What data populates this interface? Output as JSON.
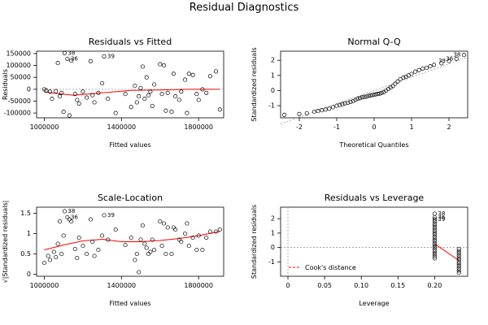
{
  "title": "Residual Diagnostics",
  "chart_data": [
    {
      "type": "scatter",
      "title": "Residuals vs Fitted",
      "xlabel": "Fitted values",
      "ylabel": "Residuals",
      "xlim": [
        960000,
        1930000
      ],
      "ylim": [
        -120000,
        160000
      ],
      "xticks": [
        1000000,
        1400000,
        1800000
      ],
      "yticks": [
        -100000,
        -50000,
        0,
        50000,
        100000,
        150000
      ],
      "reference_line": 0,
      "points": [
        [
          1000000,
          0
        ],
        [
          1010000,
          -5000
        ],
        [
          1030000,
          -10000
        ],
        [
          1040000,
          -40000
        ],
        [
          1060000,
          -8000
        ],
        [
          1070000,
          110000
        ],
        [
          1080000,
          -30000
        ],
        [
          1090000,
          -15000
        ],
        [
          1100000,
          -95000
        ],
        [
          1105000,
          152000
        ],
        [
          1120000,
          128000
        ],
        [
          1130000,
          -110000
        ],
        [
          1140000,
          120000
        ],
        [
          1160000,
          -20000
        ],
        [
          1170000,
          -45000
        ],
        [
          1180000,
          -60000
        ],
        [
          1200000,
          -10000
        ],
        [
          1220000,
          -35000
        ],
        [
          1240000,
          118000
        ],
        [
          1250000,
          -25000
        ],
        [
          1260000,
          -55000
        ],
        [
          1280000,
          -15000
        ],
        [
          1300000,
          25000
        ],
        [
          1310000,
          138000
        ],
        [
          1330000,
          -40000
        ],
        [
          1370000,
          -100000
        ],
        [
          1420000,
          -20000
        ],
        [
          1450000,
          -75000
        ],
        [
          1470000,
          15000
        ],
        [
          1480000,
          -55000
        ],
        [
          1490000,
          -30000
        ],
        [
          1500000,
          5000
        ],
        [
          1510000,
          95000
        ],
        [
          1520000,
          -40000
        ],
        [
          1530000,
          50000
        ],
        [
          1540000,
          -25000
        ],
        [
          1550000,
          -10000
        ],
        [
          1560000,
          -70000
        ],
        [
          1570000,
          20000
        ],
        [
          1600000,
          105000
        ],
        [
          1610000,
          -20000
        ],
        [
          1620000,
          100000
        ],
        [
          1630000,
          -90000
        ],
        [
          1640000,
          -15000
        ],
        [
          1660000,
          -95000
        ],
        [
          1670000,
          65000
        ],
        [
          1680000,
          -30000
        ],
        [
          1700000,
          -45000
        ],
        [
          1710000,
          -10000
        ],
        [
          1730000,
          40000
        ],
        [
          1740000,
          -100000
        ],
        [
          1750000,
          65000
        ],
        [
          1770000,
          60000
        ],
        [
          1790000,
          -20000
        ],
        [
          1800000,
          -45000
        ],
        [
          1820000,
          0
        ],
        [
          1840000,
          -15000
        ],
        [
          1860000,
          55000
        ],
        [
          1890000,
          75000
        ],
        [
          1910000,
          -85000
        ]
      ],
      "labels": [
        {
          "text": "38",
          "x": 1105000,
          "y": 152000
        },
        {
          "text": "36",
          "x": 1120000,
          "y": 128000
        },
        {
          "text": "39",
          "x": 1310000,
          "y": 138000
        }
      ],
      "smooth": [
        [
          1000000,
          -12000
        ],
        [
          1150000,
          -25000
        ],
        [
          1300000,
          -15000
        ],
        [
          1450000,
          -5000
        ],
        [
          1600000,
          -3000
        ],
        [
          1750000,
          0
        ],
        [
          1910000,
          0
        ]
      ]
    },
    {
      "type": "scatter",
      "title": "Normal Q-Q",
      "xlabel": "Theoretical Quantiles",
      "ylabel": "Standardized residuals",
      "xlim": [
        -2.5,
        2.5
      ],
      "ylim": [
        -1.8,
        2.6
      ],
      "xticks": [
        -2,
        -1,
        0,
        1,
        2
      ],
      "yticks": [
        -1,
        0,
        1,
        2
      ],
      "reference_line": [
        [
          -2.5,
          -2.2
        ],
        [
          2.5,
          2.2
        ]
      ],
      "points": [
        [
          -2.4,
          -1.6
        ],
        [
          -2.0,
          -1.55
        ],
        [
          -1.8,
          -1.5
        ],
        [
          -1.6,
          -1.4
        ],
        [
          -1.5,
          -1.35
        ],
        [
          -1.4,
          -1.3
        ],
        [
          -1.3,
          -1.25
        ],
        [
          -1.2,
          -1.2
        ],
        [
          -1.1,
          -1.1
        ],
        [
          -1.0,
          -1.0
        ],
        [
          -0.92,
          -0.95
        ],
        [
          -0.85,
          -0.9
        ],
        [
          -0.78,
          -0.85
        ],
        [
          -0.7,
          -0.8
        ],
        [
          -0.63,
          -0.75
        ],
        [
          -0.56,
          -0.7
        ],
        [
          -0.5,
          -0.62
        ],
        [
          -0.44,
          -0.55
        ],
        [
          -0.38,
          -0.5
        ],
        [
          -0.32,
          -0.45
        ],
        [
          -0.26,
          -0.42
        ],
        [
          -0.2,
          -0.4
        ],
        [
          -0.15,
          -0.35
        ],
        [
          -0.1,
          -0.32
        ],
        [
          -0.05,
          -0.3
        ],
        [
          0.0,
          -0.28
        ],
        [
          0.05,
          -0.25
        ],
        [
          0.1,
          -0.22
        ],
        [
          0.15,
          -0.2
        ],
        [
          0.2,
          -0.15
        ],
        [
          0.26,
          -0.1
        ],
        [
          0.32,
          0.0
        ],
        [
          0.38,
          0.1
        ],
        [
          0.44,
          0.2
        ],
        [
          0.5,
          0.3
        ],
        [
          0.56,
          0.45
        ],
        [
          0.63,
          0.6
        ],
        [
          0.7,
          0.75
        ],
        [
          0.78,
          0.85
        ],
        [
          0.85,
          0.9
        ],
        [
          0.92,
          1.0
        ],
        [
          1.0,
          1.1
        ],
        [
          1.1,
          1.25
        ],
        [
          1.2,
          1.35
        ],
        [
          1.3,
          1.45
        ],
        [
          1.4,
          1.5
        ],
        [
          1.5,
          1.6
        ],
        [
          1.6,
          1.7
        ],
        [
          1.8,
          1.8
        ],
        [
          2.0,
          1.95
        ],
        [
          2.2,
          2.1
        ],
        [
          2.4,
          2.35
        ]
      ],
      "labels": [
        {
          "text": "39",
          "x": 2.0,
          "y": 1.95
        },
        {
          "text": "36",
          "x": 2.2,
          "y": 2.1
        },
        {
          "text": "38",
          "x": 2.4,
          "y": 2.35
        }
      ]
    },
    {
      "type": "scatter",
      "title": "Scale-Location",
      "xlabel": "Fitted values",
      "ylabel": "√|Standardized residuals|",
      "xlim": [
        960000,
        1930000
      ],
      "ylim": [
        -0.05,
        1.65
      ],
      "xticks": [
        1000000,
        1400000,
        1800000
      ],
      "yticks": [
        0.0,
        0.5,
        1.0,
        1.5
      ],
      "points": [
        [
          1000000,
          0.28
        ],
        [
          1020000,
          0.45
        ],
        [
          1030000,
          0.35
        ],
        [
          1050000,
          0.55
        ],
        [
          1060000,
          0.42
        ],
        [
          1070000,
          0.75
        ],
        [
          1080000,
          1.3
        ],
        [
          1090000,
          0.5
        ],
        [
          1100000,
          0.95
        ],
        [
          1105000,
          1.55
        ],
        [
          1120000,
          1.4
        ],
        [
          1130000,
          1.35
        ],
        [
          1140000,
          1.3
        ],
        [
          1160000,
          0.62
        ],
        [
          1170000,
          0.4
        ],
        [
          1180000,
          0.9
        ],
        [
          1200000,
          0.7
        ],
        [
          1220000,
          0.5
        ],
        [
          1240000,
          1.35
        ],
        [
          1250000,
          0.8
        ],
        [
          1260000,
          0.45
        ],
        [
          1280000,
          0.6
        ],
        [
          1300000,
          0.95
        ],
        [
          1310000,
          1.45
        ],
        [
          1330000,
          0.85
        ],
        [
          1370000,
          1.1
        ],
        [
          1420000,
          0.72
        ],
        [
          1450000,
          0.9
        ],
        [
          1470000,
          0.35
        ],
        [
          1480000,
          0.5
        ],
        [
          1490000,
          0.05
        ],
        [
          1500000,
          0.85
        ],
        [
          1510000,
          1.2
        ],
        [
          1520000,
          0.75
        ],
        [
          1530000,
          0.65
        ],
        [
          1540000,
          0.5
        ],
        [
          1550000,
          0.55
        ],
        [
          1560000,
          0.85
        ],
        [
          1570000,
          0.6
        ],
        [
          1600000,
          1.3
        ],
        [
          1610000,
          0.7
        ],
        [
          1620000,
          1.25
        ],
        [
          1630000,
          0.5
        ],
        [
          1640000,
          1.15
        ],
        [
          1660000,
          0.5
        ],
        [
          1670000,
          1.15
        ],
        [
          1680000,
          1.1
        ],
        [
          1700000,
          0.85
        ],
        [
          1710000,
          0.8
        ],
        [
          1730000,
          1.0
        ],
        [
          1740000,
          1.25
        ],
        [
          1750000,
          0.7
        ],
        [
          1770000,
          0.9
        ],
        [
          1790000,
          0.6
        ],
        [
          1800000,
          0.95
        ],
        [
          1820000,
          0.6
        ],
        [
          1840000,
          0.9
        ],
        [
          1860000,
          1.05
        ],
        [
          1890000,
          1.05
        ],
        [
          1910000,
          1.1
        ]
      ],
      "labels": [
        {
          "text": "38",
          "x": 1105000,
          "y": 1.55
        },
        {
          "text": "36",
          "x": 1120000,
          "y": 1.4
        },
        {
          "text": "39",
          "x": 1310000,
          "y": 1.45
        }
      ],
      "smooth": [
        [
          1000000,
          0.6
        ],
        [
          1100000,
          0.72
        ],
        [
          1200000,
          0.82
        ],
        [
          1300000,
          0.86
        ],
        [
          1400000,
          0.8
        ],
        [
          1500000,
          0.8
        ],
        [
          1600000,
          0.83
        ],
        [
          1700000,
          0.88
        ],
        [
          1800000,
          0.95
        ],
        [
          1910000,
          1.05
        ]
      ]
    },
    {
      "type": "scatter",
      "title": "Residuals vs Leverage",
      "xlabel": "Leverage",
      "ylabel": "Standardized residuals",
      "xlim": [
        -0.01,
        0.245
      ],
      "ylim": [
        -2.0,
        2.8
      ],
      "xticks": [
        0.0,
        0.05,
        0.1,
        0.15,
        0.2
      ],
      "yticks": [
        -1,
        0,
        1,
        2
      ],
      "reference_line": 0,
      "legend": "Cook's distance",
      "points": [
        [
          0.2,
          2.35
        ],
        [
          0.2,
          2.1
        ],
        [
          0.2,
          1.95
        ],
        [
          0.2,
          1.8
        ],
        [
          0.2,
          1.65
        ],
        [
          0.2,
          1.5
        ],
        [
          0.2,
          1.35
        ],
        [
          0.2,
          1.2
        ],
        [
          0.2,
          1.05
        ],
        [
          0.2,
          0.9
        ],
        [
          0.2,
          0.75
        ],
        [
          0.2,
          0.6
        ],
        [
          0.2,
          0.45
        ],
        [
          0.2,
          0.3
        ],
        [
          0.2,
          0.15
        ],
        [
          0.2,
          0.0
        ],
        [
          0.2,
          -0.15
        ],
        [
          0.2,
          -0.3
        ],
        [
          0.2,
          -0.45
        ],
        [
          0.2,
          -0.6
        ],
        [
          0.2,
          -0.75
        ],
        [
          0.233,
          -0.1
        ],
        [
          0.233,
          -0.25
        ],
        [
          0.233,
          -0.4
        ],
        [
          0.233,
          -0.55
        ],
        [
          0.233,
          -0.7
        ],
        [
          0.233,
          -0.85
        ],
        [
          0.233,
          -1.0
        ],
        [
          0.233,
          -1.15
        ],
        [
          0.233,
          -1.3
        ],
        [
          0.233,
          -1.45
        ],
        [
          0.233,
          -1.6
        ],
        [
          0.233,
          -1.75
        ]
      ],
      "labels": [
        {
          "text": "38",
          "x": 0.2,
          "y": 2.35
        },
        {
          "text": "36",
          "x": 0.2,
          "y": 2.1
        },
        {
          "text": "39",
          "x": 0.2,
          "y": 1.95
        }
      ],
      "smooth": [
        [
          0.2,
          0.25
        ],
        [
          0.233,
          -0.9
        ]
      ]
    }
  ],
  "colors": {
    "points": "#000000",
    "smooth": "#ff0000",
    "refline": "#999999"
  }
}
